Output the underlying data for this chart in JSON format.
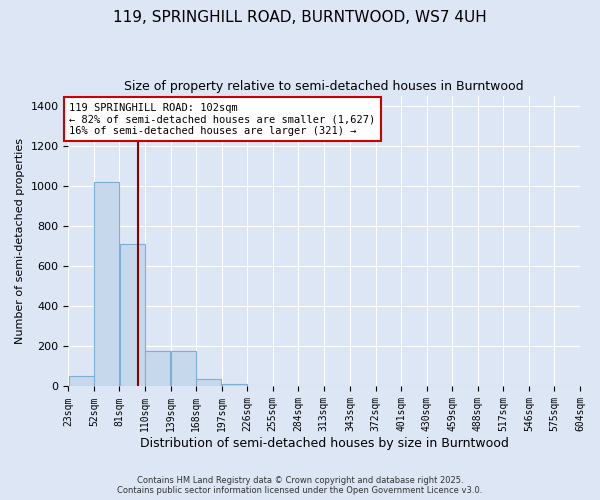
{
  "title": "119, SPRINGHILL ROAD, BURNTWOOD, WS7 4UH",
  "subtitle": "Size of property relative to semi-detached houses in Burntwood",
  "xlabel": "Distribution of semi-detached houses by size in Burntwood",
  "ylabel": "Number of semi-detached properties",
  "bin_edges": [
    23,
    52,
    81,
    110,
    139,
    168,
    197,
    226,
    255,
    284,
    313,
    343,
    372,
    401,
    430,
    459,
    488,
    517,
    546,
    575,
    604
  ],
  "bar_heights": [
    50,
    1020,
    710,
    175,
    175,
    35,
    10,
    0,
    0,
    0,
    0,
    0,
    0,
    0,
    0,
    0,
    0,
    0,
    0,
    0
  ],
  "bar_color": "#c6d9ec",
  "bar_edge_color": "#7bafd4",
  "property_size": 102,
  "red_line_color": "#8b0000",
  "annotation_text_line1": "119 SPRINGHILL ROAD: 102sqm",
  "annotation_text_line2": "← 82% of semi-detached houses are smaller (1,627)",
  "annotation_text_line3": "16% of semi-detached houses are larger (321) →",
  "ylim": [
    0,
    1450
  ],
  "yticks": [
    0,
    200,
    400,
    600,
    800,
    1000,
    1200,
    1400
  ],
  "background_color": "#dce6f5",
  "axes_background": "#dce6f5",
  "footnote1": "Contains HM Land Registry data © Crown copyright and database right 2025.",
  "footnote2": "Contains public sector information licensed under the Open Government Licence v3.0."
}
